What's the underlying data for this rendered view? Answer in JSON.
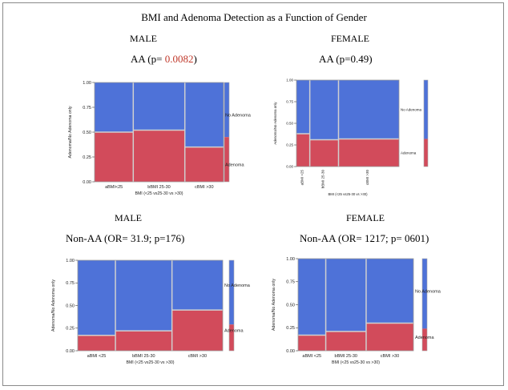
{
  "title": "BMI and Adenoma Detection as a Function of Gender",
  "colors": {
    "adenoma": "#d24b5b",
    "no_adenoma": "#4e72d8",
    "divider": "#d0d0d0",
    "highlight_p": "#c0392b"
  },
  "panels": [
    {
      "gender": "MALE",
      "heading_prefix": "AA (p= ",
      "heading_p": "0.0082",
      "heading_suffix": ")"
    },
    {
      "gender": "FEMALE",
      "heading": "AA (p=0.49)"
    },
    {
      "gender": "MALE",
      "heading": "Non-AA  (OR= 31.9; p=176)"
    },
    {
      "gender": "FEMALE",
      "heading": "Non-AA (OR= 1217; p= 0601)"
    }
  ],
  "chart_data": [
    {
      "type": "mosaic",
      "ylabel": "Adenoma/No Adenoma only",
      "xlabel": "BMI (<25 vs25-30 vs >30)",
      "y_ticks": [
        "0.00",
        "0.25",
        "0.50",
        "0.75",
        "1.00"
      ],
      "ylim": [
        0,
        1
      ],
      "categories": [
        "aBMI<25",
        "bBMI 25-30",
        "cBMI >30"
      ],
      "column_widths": [
        0.3,
        0.4,
        0.3
      ],
      "series": [
        {
          "name": "Adenoma",
          "values": [
            0.5,
            0.52,
            0.35
          ]
        },
        {
          "name": "No Adenoma",
          "values": [
            0.5,
            0.48,
            0.65
          ]
        }
      ],
      "marginal_adenoma": 0.45,
      "legend": "right"
    },
    {
      "type": "mosaic",
      "ylabel": "Adenoma/No Adenoma only",
      "xlabel": "BMI (<25 vs25-30 vs >30)",
      "y_ticks": [
        "0.00",
        "0.25",
        "0.50",
        "0.75",
        "1.00"
      ],
      "ylim": [
        0,
        1
      ],
      "categories": [
        "aBMI <25",
        "bBMI 25-30",
        "cBMI >30"
      ],
      "column_widths": [
        0.13,
        0.28,
        0.59
      ],
      "series": [
        {
          "name": "Adenoma",
          "values": [
            0.38,
            0.31,
            0.32
          ]
        },
        {
          "name": "No Adenoma",
          "values": [
            0.62,
            0.69,
            0.68
          ]
        }
      ],
      "marginal_adenoma": 0.32,
      "legend": "right"
    },
    {
      "type": "mosaic",
      "ylabel": "Adenoma/No Adenoma only",
      "xlabel": "BMI  (<25 vs25-30 vs >30)",
      "y_ticks": [
        "0.00",
        "0.25",
        "0.50",
        "0.75",
        "1.00"
      ],
      "ylim": [
        0,
        1
      ],
      "categories": [
        "aBMI <25",
        "bBMI 25-30",
        "cBMI >30"
      ],
      "column_widths": [
        0.26,
        0.39,
        0.35
      ],
      "series": [
        {
          "name": "Adenoma",
          "values": [
            0.17,
            0.22,
            0.45
          ]
        },
        {
          "name": "No Adenoma",
          "values": [
            0.83,
            0.78,
            0.55
          ]
        }
      ],
      "marginal_adenoma": 0.29,
      "legend": "right"
    },
    {
      "type": "mosaic",
      "ylabel": "Adenoma/No Adenoma only",
      "xlabel": "BMI  (<25 vs25-30 vs >30)",
      "y_ticks": [
        "0.00",
        "0.25",
        "0.50",
        "0.75",
        "1.00"
      ],
      "ylim": [
        0,
        1
      ],
      "categories": [
        "aBMI <25",
        "bBMI 25-30",
        "cBMI >30"
      ],
      "column_widths": [
        0.24,
        0.35,
        0.41
      ],
      "series": [
        {
          "name": "Adenoma",
          "values": [
            0.17,
            0.21,
            0.3
          ]
        },
        {
          "name": "No Adenoma",
          "values": [
            0.83,
            0.79,
            0.7
          ]
        }
      ],
      "marginal_adenoma": 0.24,
      "legend": "right"
    }
  ]
}
